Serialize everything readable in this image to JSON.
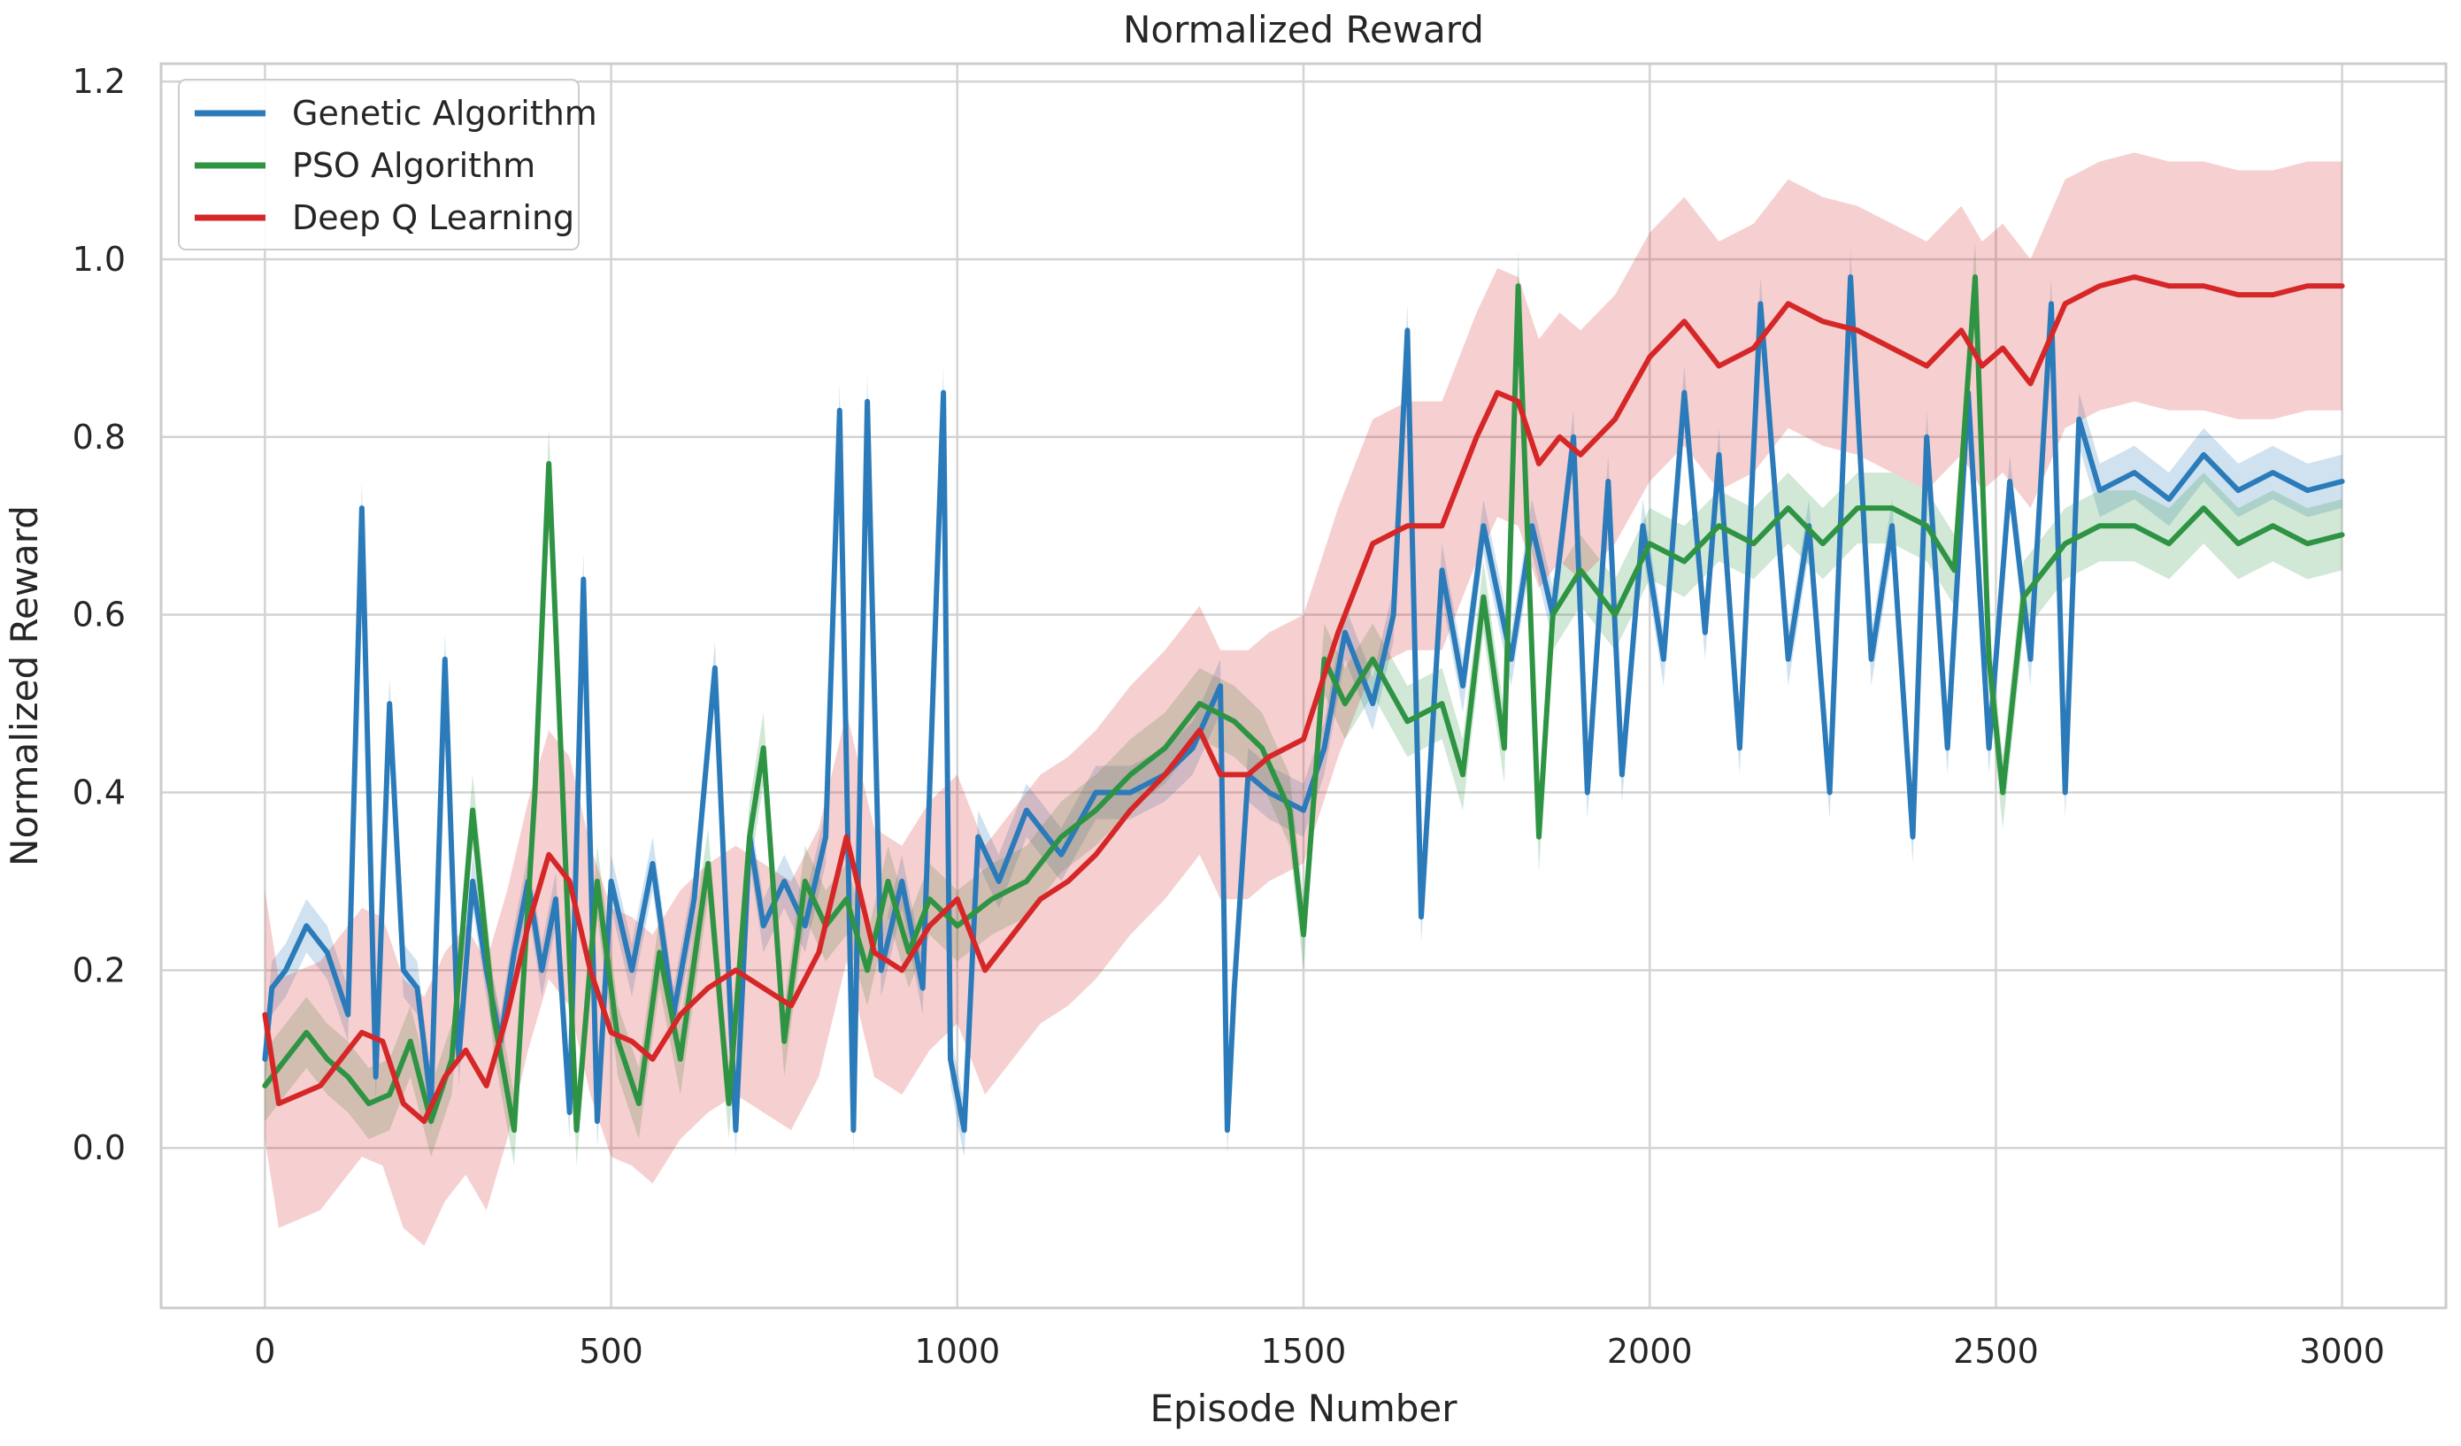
{
  "chart_data": {
    "type": "line",
    "title": "Normalized Reward",
    "xlabel": "Episode Number",
    "ylabel": "Normalized Reward",
    "xlim": [
      -150,
      3150
    ],
    "ylim": [
      -0.18,
      1.22
    ],
    "xticks": [
      0,
      500,
      1000,
      1500,
      2000,
      2500,
      3000
    ],
    "xtick_labels": [
      "0",
      "500",
      "1000",
      "1500",
      "2000",
      "2500",
      "3000"
    ],
    "yticks": [
      0.0,
      0.2,
      0.4,
      0.6,
      0.8,
      1.0,
      1.2
    ],
    "ytick_labels": [
      "0.0",
      "0.2",
      "0.4",
      "0.6",
      "0.8",
      "1.0",
      "1.2"
    ],
    "grid": true,
    "legend_position": "top-left",
    "series": [
      {
        "name": "Genetic Algorithm",
        "color": "#2b7bba",
        "x": [
          0,
          10,
          30,
          60,
          90,
          120,
          140,
          160,
          180,
          200,
          220,
          240,
          260,
          280,
          300,
          320,
          340,
          360,
          380,
          400,
          420,
          440,
          460,
          480,
          500,
          530,
          560,
          590,
          620,
          650,
          680,
          700,
          720,
          750,
          780,
          810,
          830,
          850,
          870,
          890,
          920,
          950,
          980,
          990,
          1010,
          1030,
          1060,
          1100,
          1150,
          1200,
          1250,
          1300,
          1340,
          1380,
          1390,
          1400,
          1420,
          1450,
          1500,
          1530,
          1560,
          1600,
          1630,
          1650,
          1670,
          1700,
          1730,
          1760,
          1800,
          1830,
          1860,
          1890,
          1910,
          1940,
          1960,
          1990,
          2020,
          2050,
          2080,
          2100,
          2130,
          2160,
          2200,
          2230,
          2260,
          2290,
          2320,
          2350,
          2380,
          2400,
          2430,
          2460,
          2490,
          2520,
          2550,
          2580,
          2600,
          2620,
          2650,
          2700,
          2750,
          2800,
          2850,
          2900,
          2950,
          3000
        ],
        "values": [
          0.1,
          0.18,
          0.2,
          0.25,
          0.22,
          0.15,
          0.72,
          0.08,
          0.5,
          0.2,
          0.18,
          0.05,
          0.55,
          0.1,
          0.3,
          0.2,
          0.12,
          0.22,
          0.3,
          0.2,
          0.28,
          0.04,
          0.64,
          0.03,
          0.3,
          0.2,
          0.32,
          0.15,
          0.28,
          0.54,
          0.02,
          0.35,
          0.25,
          0.3,
          0.25,
          0.35,
          0.83,
          0.02,
          0.84,
          0.2,
          0.3,
          0.18,
          0.85,
          0.1,
          0.02,
          0.35,
          0.3,
          0.38,
          0.33,
          0.4,
          0.4,
          0.42,
          0.45,
          0.52,
          0.02,
          0.18,
          0.42,
          0.4,
          0.38,
          0.45,
          0.58,
          0.5,
          0.6,
          0.92,
          0.26,
          0.65,
          0.52,
          0.7,
          0.55,
          0.7,
          0.6,
          0.8,
          0.4,
          0.75,
          0.42,
          0.7,
          0.55,
          0.85,
          0.58,
          0.78,
          0.45,
          0.95,
          0.55,
          0.7,
          0.4,
          0.98,
          0.55,
          0.7,
          0.35,
          0.8,
          0.45,
          0.85,
          0.45,
          0.75,
          0.55,
          0.95,
          0.4,
          0.82,
          0.74,
          0.76,
          0.73,
          0.78,
          0.74,
          0.76,
          0.74,
          0.75
        ],
        "band_halfwidth": 0.03
      },
      {
        "name": "PSO Algorithm",
        "color": "#2e9444",
        "x": [
          0,
          30,
          60,
          90,
          120,
          150,
          180,
          210,
          240,
          270,
          300,
          330,
          360,
          390,
          410,
          430,
          450,
          480,
          510,
          540,
          570,
          600,
          640,
          670,
          700,
          720,
          750,
          780,
          810,
          840,
          870,
          900,
          930,
          960,
          1000,
          1050,
          1100,
          1150,
          1200,
          1250,
          1300,
          1350,
          1400,
          1440,
          1480,
          1500,
          1530,
          1560,
          1600,
          1650,
          1700,
          1730,
          1760,
          1790,
          1810,
          1840,
          1860,
          1900,
          1950,
          2000,
          2050,
          2100,
          2150,
          2200,
          2250,
          2300,
          2350,
          2400,
          2440,
          2470,
          2490,
          2510,
          2540,
          2600,
          2650,
          2700,
          2750,
          2800,
          2850,
          2900,
          2950,
          3000
        ],
        "values": [
          0.07,
          0.1,
          0.13,
          0.1,
          0.08,
          0.05,
          0.06,
          0.12,
          0.03,
          0.1,
          0.38,
          0.15,
          0.02,
          0.4,
          0.77,
          0.4,
          0.02,
          0.3,
          0.12,
          0.05,
          0.22,
          0.1,
          0.32,
          0.05,
          0.35,
          0.45,
          0.12,
          0.3,
          0.25,
          0.28,
          0.2,
          0.3,
          0.22,
          0.28,
          0.25,
          0.28,
          0.3,
          0.35,
          0.38,
          0.42,
          0.45,
          0.5,
          0.48,
          0.45,
          0.38,
          0.24,
          0.55,
          0.5,
          0.55,
          0.48,
          0.5,
          0.42,
          0.62,
          0.45,
          0.97,
          0.35,
          0.6,
          0.65,
          0.6,
          0.68,
          0.66,
          0.7,
          0.68,
          0.72,
          0.68,
          0.72,
          0.72,
          0.7,
          0.65,
          0.98,
          0.55,
          0.4,
          0.62,
          0.68,
          0.7,
          0.7,
          0.68,
          0.72,
          0.68,
          0.7,
          0.68,
          0.69
        ],
        "band_halfwidth": 0.04
      },
      {
        "name": "Deep Q Learning",
        "color": "#d62728",
        "x": [
          0,
          20,
          50,
          80,
          110,
          140,
          170,
          200,
          230,
          260,
          290,
          320,
          350,
          380,
          410,
          440,
          470,
          500,
          530,
          560,
          600,
          640,
          680,
          720,
          760,
          800,
          840,
          880,
          920,
          960,
          1000,
          1040,
          1080,
          1120,
          1160,
          1200,
          1250,
          1300,
          1350,
          1380,
          1420,
          1450,
          1500,
          1550,
          1600,
          1650,
          1700,
          1750,
          1780,
          1810,
          1840,
          1870,
          1900,
          1950,
          2000,
          2050,
          2100,
          2150,
          2200,
          2250,
          2300,
          2350,
          2400,
          2450,
          2480,
          2510,
          2550,
          2600,
          2650,
          2700,
          2750,
          2800,
          2850,
          2900,
          2950,
          3000
        ],
        "values": [
          0.15,
          0.05,
          0.06,
          0.07,
          0.1,
          0.13,
          0.12,
          0.05,
          0.03,
          0.08,
          0.11,
          0.07,
          0.15,
          0.25,
          0.33,
          0.3,
          0.2,
          0.13,
          0.12,
          0.1,
          0.15,
          0.18,
          0.2,
          0.18,
          0.16,
          0.22,
          0.35,
          0.22,
          0.2,
          0.25,
          0.28,
          0.2,
          0.24,
          0.28,
          0.3,
          0.33,
          0.38,
          0.42,
          0.47,
          0.42,
          0.42,
          0.44,
          0.46,
          0.58,
          0.68,
          0.7,
          0.7,
          0.8,
          0.85,
          0.84,
          0.77,
          0.8,
          0.78,
          0.82,
          0.89,
          0.93,
          0.88,
          0.9,
          0.95,
          0.93,
          0.92,
          0.9,
          0.88,
          0.92,
          0.88,
          0.9,
          0.86,
          0.95,
          0.97,
          0.98,
          0.97,
          0.97,
          0.96,
          0.96,
          0.97,
          0.97
        ],
        "band_halfwidth": 0.14
      }
    ]
  }
}
